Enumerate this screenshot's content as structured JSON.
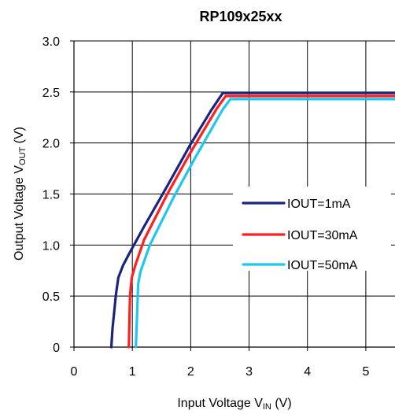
{
  "chart_data": {
    "type": "line",
    "title": "RP109x25xx",
    "xlabel": {
      "main": "Input Voltage V",
      "sub": "IN",
      "unit": " (V)"
    },
    "ylabel": {
      "main": "Output Voltage V",
      "sub": "OUT",
      "unit": " (V)"
    },
    "xlim": [
      0,
      5.5
    ],
    "ylim": [
      0,
      3.0
    ],
    "xticks": [
      0,
      1,
      2,
      3,
      4,
      5
    ],
    "yticks": [
      0,
      0.5,
      1.0,
      1.5,
      2.0,
      2.5,
      3.0
    ],
    "xtick_labels": [
      "0",
      "1",
      "2",
      "3",
      "4",
      "5"
    ],
    "ytick_labels": [
      "0",
      "0.5",
      "1.0",
      "1.5",
      "2.0",
      "2.5",
      "3.0"
    ],
    "grid": true,
    "legend_position": "right",
    "series": [
      {
        "name": "IOUT=1mA",
        "color": "#1a237e",
        "points": [
          [
            0.64,
            0.0
          ],
          [
            0.66,
            0.18
          ],
          [
            0.69,
            0.35
          ],
          [
            0.72,
            0.52
          ],
          [
            0.76,
            0.68
          ],
          [
            0.84,
            0.8
          ],
          [
            0.95,
            0.92
          ],
          [
            1.2,
            1.18
          ],
          [
            1.6,
            1.58
          ],
          [
            2.0,
            1.99
          ],
          [
            2.35,
            2.32
          ],
          [
            2.55,
            2.49
          ],
          [
            5.5,
            2.49
          ]
        ]
      },
      {
        "name": "IOUT=30mA",
        "color": "#ff1f1f",
        "points": [
          [
            0.94,
            0.0
          ],
          [
            0.95,
            0.25
          ],
          [
            0.96,
            0.5
          ],
          [
            0.99,
            0.68
          ],
          [
            1.05,
            0.8
          ],
          [
            1.2,
            1.05
          ],
          [
            1.6,
            1.5
          ],
          [
            2.0,
            1.91
          ],
          [
            2.45,
            2.34
          ],
          [
            2.6,
            2.46
          ],
          [
            5.5,
            2.46
          ]
        ]
      },
      {
        "name": "IOUT=50mA",
        "color": "#20c6f0",
        "points": [
          [
            1.06,
            0.0
          ],
          [
            1.08,
            0.3
          ],
          [
            1.1,
            0.62
          ],
          [
            1.14,
            0.74
          ],
          [
            1.3,
            1.0
          ],
          [
            1.7,
            1.46
          ],
          [
            2.1,
            1.88
          ],
          [
            2.55,
            2.33
          ],
          [
            2.68,
            2.43
          ],
          [
            5.5,
            2.43
          ]
        ]
      }
    ]
  }
}
